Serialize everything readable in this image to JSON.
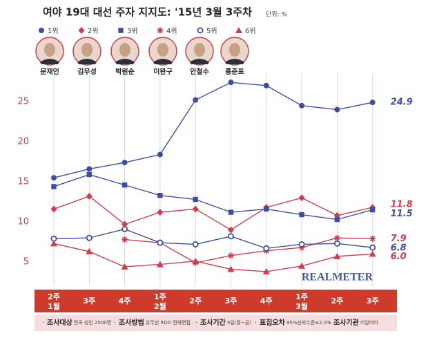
{
  "chart_data": {
    "type": "line",
    "title": "여야 19대 대선 주자 지지도: '15년 3월 3주차",
    "unit": "단위: %",
    "candidates": [
      "문재인",
      "김무성",
      "박원순",
      "이완구",
      "안철수",
      "홍준표"
    ],
    "categories": [
      "2주",
      "3주",
      "4주",
      "1주",
      "2주",
      "3주",
      "4주",
      "1주",
      "2주",
      "3주"
    ],
    "month_labels": [
      "1월",
      null,
      null,
      "2월",
      null,
      null,
      null,
      "3월",
      null,
      null
    ],
    "ylim": [
      2,
      28.5
    ],
    "yticks": [
      5,
      10,
      15,
      20,
      25
    ],
    "grid": "x",
    "watermark": "REALMETER",
    "series": [
      {
        "name": "1위",
        "color": "#3b4ea5",
        "marker": "circle",
        "values": [
          15.5,
          16.6,
          17.4,
          18.4,
          25.2,
          27.4,
          27.0,
          24.5,
          24.0,
          24.9
        ],
        "value_labels": [
          null,
          null,
          null,
          null,
          null,
          null,
          null,
          null,
          null,
          "24.9"
        ]
      },
      {
        "name": "2위",
        "color": "#d33b4b",
        "marker": "diamond",
        "values": [
          11.6,
          13.2,
          9.7,
          11.2,
          11.6,
          9.0,
          11.8,
          13.0,
          10.8,
          11.8
        ],
        "value_labels": [
          null,
          null,
          null,
          null,
          null,
          null,
          null,
          null,
          null,
          "11.8"
        ]
      },
      {
        "name": "3위",
        "color": "#3b4ea5",
        "marker": "square",
        "values": [
          14.4,
          15.9,
          14.6,
          13.3,
          12.8,
          11.2,
          11.6,
          10.9,
          10.3,
          11.5
        ],
        "value_labels": [
          null,
          null,
          null,
          null,
          null,
          null,
          null,
          null,
          null,
          "11.5"
        ]
      },
      {
        "name": "4위",
        "color": "#d33b4b",
        "marker": "asterisk",
        "values": [
          null,
          null,
          7.8,
          7.4,
          4.9,
          5.8,
          6.4,
          6.8,
          8.0,
          7.9
        ],
        "value_labels": [
          null,
          null,
          null,
          null,
          null,
          null,
          null,
          null,
          null,
          "7.9"
        ]
      },
      {
        "name": "5위",
        "color": "#3b4ea5",
        "marker": "open-circle",
        "values": [
          7.9,
          8.0,
          9.1,
          7.4,
          7.2,
          8.2,
          6.7,
          7.2,
          7.3,
          6.8
        ],
        "value_labels": [
          null,
          null,
          null,
          null,
          null,
          null,
          null,
          null,
          null,
          "6.8"
        ]
      },
      {
        "name": "6위",
        "color": "#d33b4b",
        "marker": "triangle",
        "values": [
          7.3,
          6.3,
          4.4,
          4.7,
          5.1,
          4.1,
          3.8,
          4.5,
          5.7,
          6.0
        ],
        "value_labels": [
          null,
          null,
          null,
          null,
          null,
          null,
          null,
          null,
          null,
          "6.0"
        ]
      }
    ],
    "footer": [
      {
        "label": "조사대상",
        "detail": "전국 성인 2500명"
      },
      {
        "label": "조사방법",
        "detail": "유무선 RDD 전화면접"
      },
      {
        "label": "조사기간",
        "detail": "5일(월~금)"
      },
      {
        "label": "표집오차",
        "detail": "95%신뢰수준±2.0%"
      },
      {
        "label": "조사기관",
        "detail": "리얼미터"
      }
    ]
  }
}
